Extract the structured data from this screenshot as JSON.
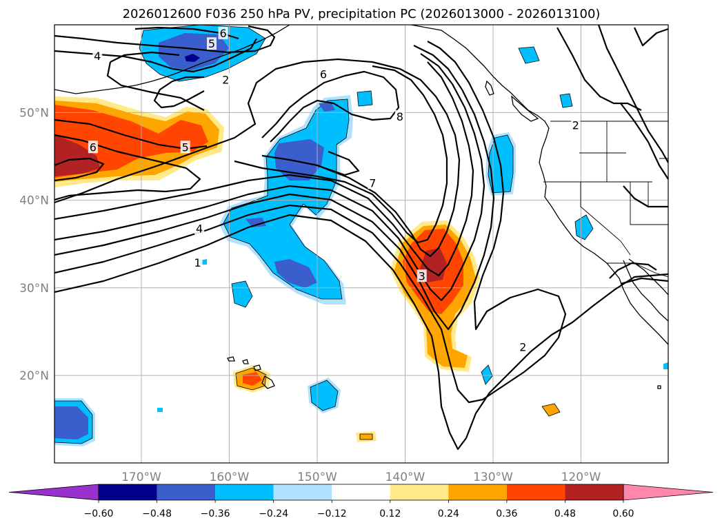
{
  "chart_data": {
    "type": "contour",
    "title": "2026012600 F036 250 hPa PV, precipitation PC (2026013000 - 2026013100)",
    "xlabel": "",
    "ylabel": "",
    "lon_range": [
      -180,
      -110
    ],
    "lat_range": [
      10,
      60
    ],
    "x_ticks": [
      {
        "lon": -170,
        "label": "170°W"
      },
      {
        "lon": -160,
        "label": "160°W"
      },
      {
        "lon": -150,
        "label": "150°W"
      },
      {
        "lon": -140,
        "label": "140°W"
      },
      {
        "lon": -130,
        "label": "130°W"
      },
      {
        "lon": -120,
        "label": "120°W"
      }
    ],
    "y_ticks": [
      {
        "lat": 20,
        "label": "20°N"
      },
      {
        "lat": 30,
        "label": "30°N"
      },
      {
        "lat": 40,
        "label": "40°N"
      },
      {
        "lat": 50,
        "label": "50°N"
      }
    ],
    "grid": true,
    "colorbar": {
      "levels": [
        -0.6,
        -0.48,
        -0.36,
        -0.24,
        -0.12,
        0.12,
        0.24,
        0.36,
        0.48,
        0.6
      ],
      "tick_labels": [
        "−0.60",
        "−0.48",
        "−0.36",
        "−0.24",
        "−0.12",
        "0.12",
        "0.24",
        "0.36",
        "0.48",
        "0.60"
      ],
      "colors": [
        "#9932cc",
        "#00008b",
        "#3a5fcd",
        "#00bfff",
        "#b0e2ff",
        "#ffffff",
        "#ffe989",
        "#ffa500",
        "#ff4500",
        "#b22222",
        "#ff88aa"
      ],
      "extend": "both",
      "orientation": "horizontal"
    },
    "contour_labels": [
      {
        "text": "6",
        "lon": -160.7,
        "lat": 59.0
      },
      {
        "text": "5",
        "lon": -162.0,
        "lat": 57.8
      },
      {
        "text": "4",
        "lon": -175.0,
        "lat": 56.4
      },
      {
        "text": "2",
        "lon": -160.4,
        "lat": 53.7
      },
      {
        "text": "6",
        "lon": -149.3,
        "lat": 54.3
      },
      {
        "text": "8",
        "lon": -140.6,
        "lat": 49.5
      },
      {
        "text": "6",
        "lon": -175.5,
        "lat": 46.0
      },
      {
        "text": "5",
        "lon": -165.0,
        "lat": 46.0
      },
      {
        "text": "7",
        "lon": -143.7,
        "lat": 41.9
      },
      {
        "text": "4",
        "lon": -163.4,
        "lat": 36.7
      },
      {
        "text": "1",
        "lon": -163.6,
        "lat": 32.8
      },
      {
        "text": "2",
        "lon": -120.6,
        "lat": 48.5
      },
      {
        "text": "2",
        "lon": -126.6,
        "lat": 23.2
      },
      {
        "text": "3",
        "lon": -138.1,
        "lat": 31.3
      }
    ],
    "pv_contour_values": [
      1,
      2,
      3,
      4,
      5,
      6,
      7,
      8
    ],
    "precip_regions": [
      {
        "level": -0.36,
        "desc": "Gulf of Alaska west",
        "lon": -163,
        "lat": 56.5
      },
      {
        "level": -0.48,
        "desc": "Gulf of Alaska core",
        "lon": -164.5,
        "lat": 56
      },
      {
        "level": 0.48,
        "desc": "west edge 45N",
        "lon": -176,
        "lat": 45
      },
      {
        "level": -0.36,
        "desc": "central Pacific band",
        "lon": -151,
        "lat": 41
      },
      {
        "level": 0.48,
        "desc": "subtropical east Pacific",
        "lon": -137,
        "lat": 32
      },
      {
        "level": -0.24,
        "desc": "California offshore",
        "lon": -127,
        "lat": 44
      },
      {
        "level": 0.24,
        "desc": "Hawaii",
        "lon": -159,
        "lat": 19.8
      },
      {
        "level": -0.36,
        "desc": "southwest corner",
        "lon": -177,
        "lat": 15
      }
    ]
  }
}
